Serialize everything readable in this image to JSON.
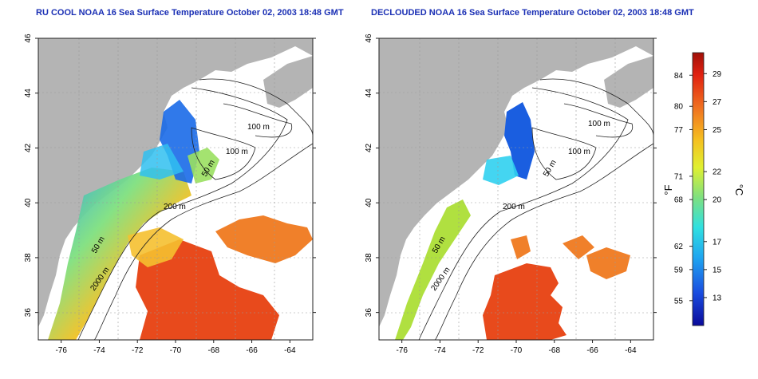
{
  "panels": [
    {
      "title": "RU COOL NOAA 16 Sea Surface Temperature October 02, 2003 18:48 GMT",
      "contour_labels": [
        "100 m",
        "100 m",
        "50 m",
        "200 m",
        "50 m",
        "2000 m"
      ]
    },
    {
      "title": "DECLOUDED NOAA 16 Sea Surface Temperature October 02, 2003 18:48 GMT",
      "contour_labels": [
        "100 m",
        "100 m",
        "50 m",
        "200 m",
        "50 m",
        "2000 m"
      ]
    }
  ],
  "axes": {
    "x_ticks": [
      "-76",
      "-74",
      "-72",
      "-70",
      "-68",
      "-66",
      "-64"
    ],
    "y_ticks": [
      "46",
      "44",
      "42",
      "40",
      "38",
      "36"
    ],
    "x_range": [
      -77.2,
      -62.8
    ],
    "y_range": [
      35.0,
      46.0
    ]
  },
  "colorbar": {
    "f_label": "°F",
    "c_label": "°C",
    "f_ticks": [
      "84",
      "80",
      "77",
      "71",
      "68",
      "62",
      "59",
      "55"
    ],
    "c_ticks": [
      "29",
      "27",
      "25",
      "22",
      "20",
      "17",
      "15",
      "13"
    ],
    "colors": [
      "#0a0a9a",
      "#1a4de0",
      "#1fa6f0",
      "#30e0e0",
      "#7fe07f",
      "#e0f030",
      "#f5c020",
      "#f07020",
      "#e02010",
      "#a01008"
    ]
  },
  "colors": {
    "land": "#b4b4b4",
    "title": "#1a2fb4"
  }
}
